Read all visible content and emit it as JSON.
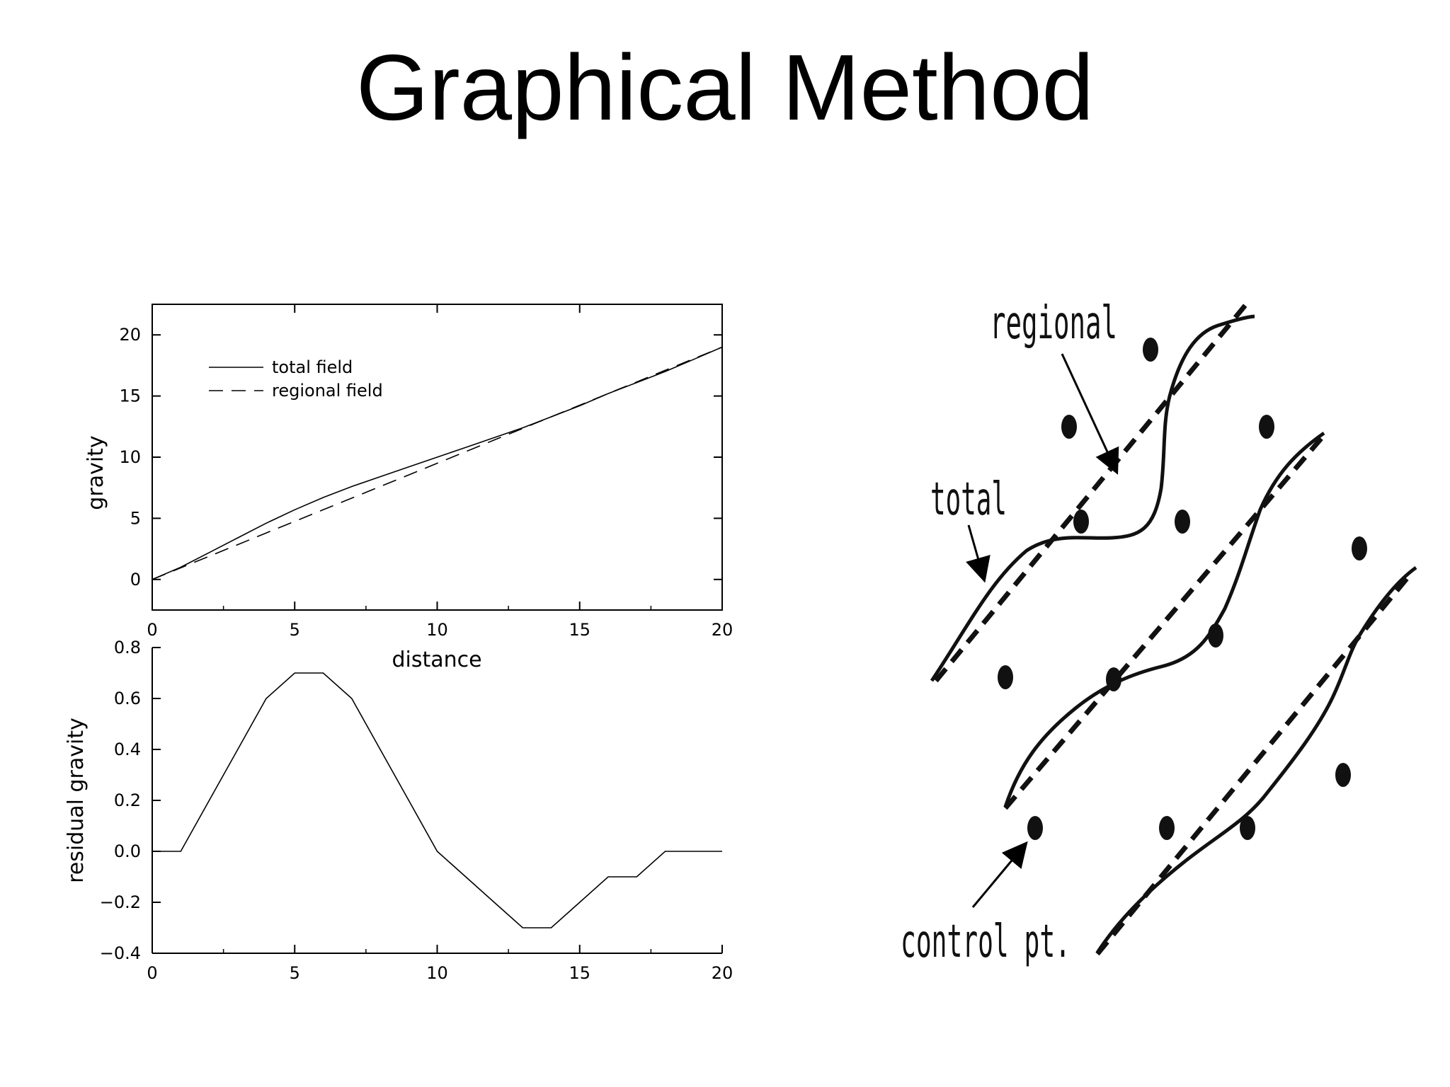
{
  "slide": {
    "title": "Graphical Method"
  },
  "chart_data": [
    {
      "type": "line",
      "x": [
        0,
        1,
        2,
        3,
        4,
        5,
        6,
        7,
        8,
        9,
        10,
        11,
        12,
        13,
        14,
        15,
        16,
        17,
        18,
        19,
        20
      ],
      "series": [
        {
          "name": "total field",
          "style": "solid",
          "values": [
            0,
            1.0,
            2.2,
            3.4,
            4.6,
            5.7,
            6.7,
            7.6,
            8.4,
            9.2,
            10.0,
            10.8,
            11.6,
            12.4,
            13.3,
            14.2,
            15.2,
            16.1,
            17.0,
            18.0,
            19.0
          ]
        },
        {
          "name": "regional field",
          "style": "dashed",
          "values": [
            0,
            0.95,
            1.9,
            2.85,
            3.8,
            4.75,
            5.7,
            6.65,
            7.6,
            8.55,
            9.5,
            10.45,
            11.4,
            12.35,
            13.3,
            14.25,
            15.2,
            16.15,
            17.1,
            18.05,
            19.0
          ]
        }
      ],
      "xlabel": "distance",
      "ylabel": "gravity",
      "xlim": [
        0,
        20
      ],
      "ylim": [
        -2.5,
        22.5
      ],
      "xticks": [
        "0",
        "5",
        "10",
        "15",
        "20"
      ],
      "yticks": [
        "0",
        "5",
        "10",
        "15",
        "20"
      ],
      "legend": "top-left",
      "grid": false
    },
    {
      "type": "line",
      "x": [
        0,
        1,
        2,
        3,
        4,
        5,
        6,
        7,
        8,
        9,
        10,
        11,
        12,
        13,
        14,
        15,
        16,
        17,
        18,
        19,
        20
      ],
      "series": [
        {
          "style": "solid",
          "values": [
            0,
            0,
            0.2,
            0.4,
            0.6,
            0.7,
            0.7,
            0.6,
            0.4,
            0.2,
            0,
            -0.1,
            -0.2,
            -0.3,
            -0.3,
            -0.2,
            -0.1,
            -0.1,
            0,
            0,
            0
          ]
        }
      ],
      "xlabel": "",
      "ylabel": "residual gravity",
      "xlim": [
        0,
        20
      ],
      "ylim": [
        -0.4,
        0.8
      ],
      "xticks": [
        "0",
        "5",
        "10",
        "15",
        "20"
      ],
      "yticks": [
        "0.8",
        "0.6",
        "0.4",
        "0.2",
        "0.0",
        "−0.2",
        "−0.4"
      ],
      "grid": false
    }
  ],
  "diagram": {
    "labels": {
      "regional": "regional",
      "total": "total",
      "control": "control pt."
    }
  }
}
